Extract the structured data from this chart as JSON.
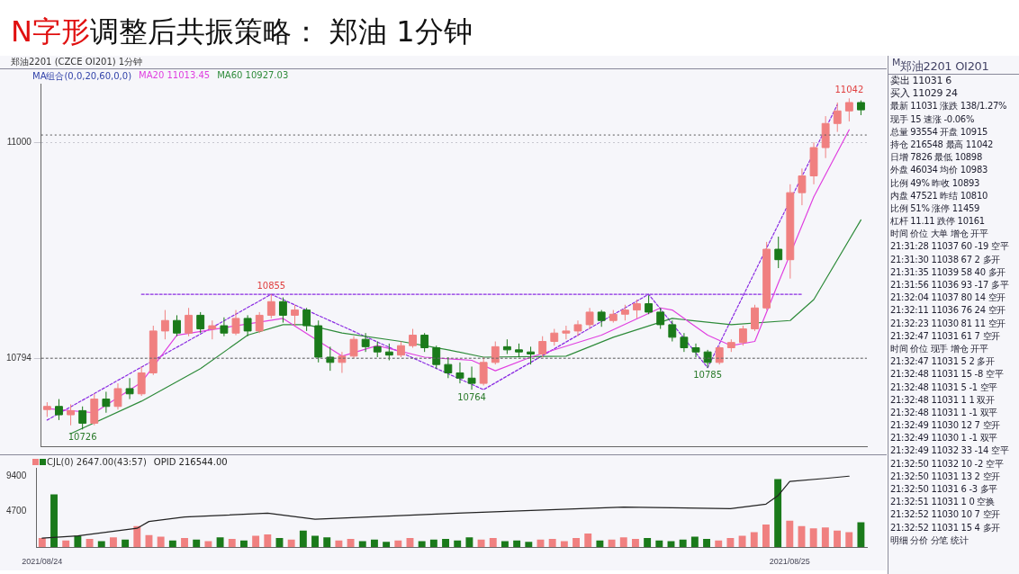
{
  "chart_data": [
    {
      "type": "candlestick",
      "title": "N字形调整后共振策略： 郑油 1分钟",
      "subtitle": "郑油2201 (CZCE OI201) 1分钟",
      "legend_title": "MA组合(0,0,20,60,0,0)",
      "legend": "top left",
      "grid": "y",
      "tick_labels": "y",
      "categories": [
        null,
        null,
        null,
        null,
        null,
        null,
        null,
        null,
        null,
        null,
        null,
        null,
        null,
        null,
        null,
        null,
        null,
        null,
        null,
        null,
        null,
        null,
        null,
        null,
        null,
        null,
        null,
        null,
        null,
        null,
        null,
        null,
        null,
        null,
        null,
        null,
        null,
        null,
        null,
        null,
        null,
        null,
        null,
        null,
        null,
        null,
        null,
        null,
        null,
        null,
        null,
        null,
        null,
        null,
        null,
        null,
        null,
        null,
        null,
        null,
        null,
        null,
        null,
        null,
        null,
        null,
        null,
        null,
        null,
        null
      ],
      "ylim": [
        10710,
        11056
      ],
      "yticks": [
        10794,
        11000
      ],
      "ohlc": [
        [
          10745,
          10752,
          10738,
          10748
        ],
        [
          10748,
          10755,
          10735,
          10740
        ],
        [
          10740,
          10750,
          10730,
          10744
        ],
        [
          10744,
          10748,
          10726,
          10732
        ],
        [
          10732,
          10760,
          10730,
          10755
        ],
        [
          10755,
          10762,
          10742,
          10748
        ],
        [
          10748,
          10770,
          10745,
          10765
        ],
        [
          10765,
          10775,
          10755,
          10760
        ],
        [
          10760,
          10786,
          10758,
          10780
        ],
        [
          10780,
          10825,
          10778,
          10820
        ],
        [
          10820,
          10840,
          10812,
          10830
        ],
        [
          10830,
          10835,
          10815,
          10818
        ],
        [
          10818,
          10842,
          10815,
          10835
        ],
        [
          10835,
          10838,
          10818,
          10822
        ],
        [
          10822,
          10830,
          10812,
          10825
        ],
        [
          10825,
          10833,
          10815,
          10818
        ],
        [
          10818,
          10840,
          10816,
          10832
        ],
        [
          10832,
          10835,
          10815,
          10820
        ],
        [
          10820,
          10838,
          10818,
          10835
        ],
        [
          10835,
          10855,
          10832,
          10848
        ],
        [
          10848,
          10852,
          10828,
          10835
        ],
        [
          10835,
          10845,
          10825,
          10840
        ],
        [
          10840,
          10842,
          10820,
          10825
        ],
        [
          10825,
          10830,
          10790,
          10795
        ],
        [
          10795,
          10805,
          10782,
          10790
        ],
        [
          10790,
          10800,
          10780,
          10796
        ],
        [
          10796,
          10815,
          10794,
          10812
        ],
        [
          10812,
          10818,
          10800,
          10805
        ],
        [
          10805,
          10810,
          10795,
          10800
        ],
        [
          10800,
          10808,
          10792,
          10797
        ],
        [
          10797,
          10810,
          10795,
          10806
        ],
        [
          10806,
          10822,
          10804,
          10816
        ],
        [
          10816,
          10818,
          10800,
          10804
        ],
        [
          10804,
          10806,
          10784,
          10788
        ],
        [
          10788,
          10795,
          10775,
          10780
        ],
        [
          10780,
          10790,
          10770,
          10775
        ],
        [
          10775,
          10786,
          10764,
          10770
        ],
        [
          10770,
          10795,
          10768,
          10790
        ],
        [
          10790,
          10810,
          10788,
          10805
        ],
        [
          10805,
          10812,
          10798,
          10802
        ],
        [
          10802,
          10808,
          10795,
          10800
        ],
        [
          10800,
          10805,
          10788,
          10798
        ],
        [
          10798,
          10815,
          10795,
          10810
        ],
        [
          10810,
          10822,
          10806,
          10818
        ],
        [
          10818,
          10825,
          10812,
          10820
        ],
        [
          10820,
          10830,
          10815,
          10826
        ],
        [
          10826,
          10842,
          10822,
          10838
        ],
        [
          10838,
          10840,
          10824,
          10830
        ],
        [
          10830,
          10840,
          10828,
          10836
        ],
        [
          10836,
          10845,
          10830,
          10840
        ],
        [
          10840,
          10850,
          10832,
          10846
        ],
        [
          10846,
          10854,
          10836,
          10838
        ],
        [
          10838,
          10842,
          10822,
          10826
        ],
        [
          10826,
          10830,
          10810,
          10814
        ],
        [
          10814,
          10818,
          10800,
          10804
        ],
        [
          10804,
          10808,
          10795,
          10800
        ],
        [
          10800,
          10802,
          10785,
          10790
        ],
        [
          10790,
          10806,
          10788,
          10804
        ],
        [
          10804,
          10812,
          10800,
          10809
        ],
        [
          10809,
          10825,
          10806,
          10822
        ],
        [
          10822,
          10845,
          10820,
          10842
        ],
        [
          10842,
          10905,
          10840,
          10898
        ],
        [
          10898,
          10910,
          10880,
          10888
        ],
        [
          10888,
          10960,
          10870,
          10952
        ],
        [
          10952,
          10975,
          10940,
          10968
        ],
        [
          10968,
          11000,
          10960,
          10995
        ],
        [
          10995,
          11025,
          10985,
          11018
        ],
        [
          11018,
          11038,
          11010,
          11030
        ],
        [
          11030,
          11042,
          11020,
          11038
        ],
        [
          11038,
          11040,
          11026,
          11031
        ]
      ],
      "colors": [
        "#f08080",
        "#1a7a1a",
        "#f08080",
        "#1a7a1a",
        "#f08080",
        "#1a7a1a",
        "#f08080",
        "#1a7a1a",
        "#f08080",
        "#f08080",
        "#f08080",
        "#1a7a1a",
        "#f08080",
        "#1a7a1a",
        "#f08080",
        "#1a7a1a",
        "#f08080",
        "#1a7a1a",
        "#f08080",
        "#f08080",
        "#1a7a1a",
        "#f08080",
        "#1a7a1a",
        "#1a7a1a",
        "#1a7a1a",
        "#f08080",
        "#f08080",
        "#1a7a1a",
        "#1a7a1a",
        "#1a7a1a",
        "#f08080",
        "#f08080",
        "#1a7a1a",
        "#1a7a1a",
        "#1a7a1a",
        "#1a7a1a",
        "#1a7a1a",
        "#f08080",
        "#f08080",
        "#1a7a1a",
        "#1a7a1a",
        "#1a7a1a",
        "#f08080",
        "#f08080",
        "#f08080",
        "#f08080",
        "#f08080",
        "#1a7a1a",
        "#f08080",
        "#f08080",
        "#f08080",
        "#1a7a1a",
        "#1a7a1a",
        "#1a7a1a",
        "#1a7a1a",
        "#1a7a1a",
        "#1a7a1a",
        "#f08080",
        "#f08080",
        "#f08080",
        "#f08080",
        "#f08080",
        "#1a7a1a",
        "#f08080",
        "#f08080",
        "#f08080",
        "#f08080",
        "#f08080",
        "#f08080",
        "#1a7a1a"
      ],
      "series": [
        {
          "name": "MA20 11013.45",
          "type": "line",
          "color": "#e040e0",
          "values": [
            10746,
            null,
            null,
            null,
            10742,
            null,
            null,
            null,
            10771,
            null,
            null,
            10816,
            null,
            null,
            null,
            null,
            null,
            null,
            null,
            null,
            10832,
            null,
            null,
            null,
            null,
            10796,
            null,
            null,
            10806,
            null,
            null,
            null,
            10795,
            null,
            null,
            null,
            10792,
            null,
            10782,
            null,
            null,
            10795,
            null,
            null,
            null,
            null,
            null,
            10816,
            null,
            null,
            null,
            null,
            10842,
            10840,
            null,
            null,
            10816,
            null,
            10806,
            null,
            10810,
            null,
            10866,
            null,
            null,
            10948,
            null,
            null,
            11012,
            null
          ]
        },
        {
          "name": "MA60 10927.03",
          "type": "line",
          "color": "#2e8b3a",
          "values": [
            null,
            null,
            10722,
            null,
            null,
            null,
            null,
            null,
            10753,
            null,
            null,
            null,
            null,
            10784,
            null,
            null,
            null,
            10816,
            null,
            null,
            10826,
            null,
            10826,
            null,
            null,
            10818,
            null,
            null,
            null,
            null,
            10810,
            null,
            null,
            null,
            10802,
            null,
            null,
            10795,
            null,
            null,
            null,
            null,
            null,
            null,
            10796,
            null,
            null,
            null,
            10814,
            null,
            null,
            null,
            null,
            10832,
            null,
            null,
            null,
            null,
            10826,
            null,
            null,
            null,
            null,
            10830,
            null,
            10850,
            null,
            null,
            null,
            10926
          ]
        },
        {
          "type": "line",
          "color": "#8a2be2",
          "line_style": "dashed",
          "values": [
            10735,
            null,
            null,
            null,
            null,
            null,
            null,
            null,
            null,
            null,
            null,
            null,
            null,
            null,
            null,
            null,
            null,
            null,
            null,
            10855,
            null,
            null,
            null,
            null,
            null,
            null,
            null,
            null,
            null,
            null,
            null,
            null,
            null,
            null,
            null,
            null,
            null,
            10764,
            null,
            null,
            null,
            null,
            null,
            null,
            null,
            null,
            null,
            null,
            null,
            null,
            null,
            10855,
            null,
            null,
            null,
            null,
            10785,
            null,
            null,
            null,
            null,
            null,
            null,
            null,
            null,
            null,
            null,
            11036,
            null,
            null
          ]
        },
        {
          "type": "line",
          "color": "#8a2be2",
          "line_style": "dashed",
          "values": [
            null,
            null,
            null,
            null,
            null,
            null,
            null,
            null,
            10855,
            null,
            null,
            null,
            null,
            null,
            null,
            null,
            null,
            null,
            null,
            null,
            null,
            null,
            null,
            null,
            null,
            null,
            null,
            null,
            null,
            null,
            null,
            null,
            null,
            null,
            null,
            null,
            null,
            null,
            null,
            null,
            null,
            null,
            null,
            null,
            null,
            null,
            null,
            null,
            null,
            null,
            null,
            null,
            null,
            null,
            null,
            null,
            null,
            null,
            null,
            null,
            null,
            null,
            null,
            null,
            10855,
            null,
            null,
            null,
            null,
            null
          ]
        }
      ],
      "ref_lines": [
        {
          "axis": "y",
          "value": 10794,
          "color": "#666666",
          "line_style": "dashed"
        },
        {
          "axis": "y",
          "value": 11007,
          "color": "#555555",
          "line_style": "dotted"
        }
      ],
      "annotations": [
        {
          "text": "11042",
          "y": 11042
        },
        {
          "text": "10855",
          "y": 10855
        },
        {
          "text": "10764",
          "y": 10764
        },
        {
          "text": "10785",
          "y": 10785
        },
        {
          "text": "10726",
          "y": 10726
        }
      ]
    },
    {
      "type": "bar",
      "legend": "top left",
      "tick_labels": "xy",
      "categories": [
        "2021/08/24",
        null,
        null,
        null,
        null,
        null,
        null,
        null,
        null,
        null,
        null,
        null,
        null,
        null,
        null,
        null,
        null,
        null,
        null,
        null,
        null,
        null,
        null,
        null,
        null,
        null,
        null,
        null,
        null,
        null,
        null,
        null,
        null,
        null,
        null,
        null,
        null,
        null,
        null,
        null,
        null,
        null,
        null,
        null,
        null,
        null,
        null,
        null,
        null,
        null,
        null,
        null,
        null,
        null,
        null,
        null,
        null,
        null,
        null,
        null,
        null,
        null,
        null,
        "2021/08/25",
        null,
        null,
        null,
        null,
        null,
        null
      ],
      "ylim": [
        0,
        10500
      ],
      "yticks": [
        4700,
        9400
      ],
      "series": [
        {
          "name": "CJL(0) 2647.00(43:57)",
          "type": "bar",
          "colors": [
            "#f08080",
            "#1a7a1a",
            "#f08080",
            "#1a7a1a",
            "#f08080",
            "#1a7a1a",
            "#f08080",
            "#1a7a1a",
            "#f08080",
            "#f08080",
            "#f08080",
            "#1a7a1a",
            "#f08080",
            "#1a7a1a",
            "#f08080",
            "#1a7a1a",
            "#f08080",
            "#1a7a1a",
            "#f08080",
            "#f08080",
            "#1a7a1a",
            "#f08080",
            "#1a7a1a",
            "#1a7a1a",
            "#1a7a1a",
            "#f08080",
            "#f08080",
            "#1a7a1a",
            "#1a7a1a",
            "#1a7a1a",
            "#f08080",
            "#f08080",
            "#1a7a1a",
            "#1a7a1a",
            "#1a7a1a",
            "#1a7a1a",
            "#1a7a1a",
            "#f08080",
            "#f08080",
            "#1a7a1a",
            "#1a7a1a",
            "#1a7a1a",
            "#f08080",
            "#f08080",
            "#f08080",
            "#f08080",
            "#f08080",
            "#1a7a1a",
            "#f08080",
            "#f08080",
            "#f08080",
            "#1a7a1a",
            "#1a7a1a",
            "#1a7a1a",
            "#1a7a1a",
            "#1a7a1a",
            "#1a7a1a",
            "#f08080",
            "#f08080",
            "#f08080",
            "#f08080",
            "#f08080",
            "#1a7a1a",
            "#f08080",
            "#f08080",
            "#f08080",
            "#f08080",
            "#f08080",
            "#f08080",
            "#1a7a1a"
          ],
          "values": [
            1200,
            7000,
            900,
            1500,
            1100,
            800,
            1300,
            1000,
            2800,
            1600,
            1400,
            900,
            1200,
            1000,
            800,
            1300,
            1100,
            900,
            1500,
            1700,
            1200,
            1000,
            2200,
            1500,
            1300,
            900,
            1100,
            800,
            1000,
            700,
            900,
            1200,
            800,
            1000,
            1100,
            900,
            1300,
            1000,
            1200,
            800,
            900,
            700,
            1000,
            1100,
            800,
            1200,
            1800,
            900,
            1000,
            1300,
            1100,
            1200,
            900,
            800,
            1000,
            1400,
            1100,
            900,
            1200,
            1500,
            2000,
            3000,
            9000,
            3500,
            2800,
            2500,
            2600,
            2200,
            2000,
            3300
          ]
        },
        {
          "name": "OPID 216544.00",
          "type": "line",
          "color": "#222222",
          "values": [
            1200,
            null,
            null,
            1500,
            null,
            null,
            null,
            null,
            2500,
            3400,
            null,
            null,
            4000,
            null,
            null,
            null,
            null,
            null,
            null,
            4500,
            null,
            null,
            null,
            3700,
            null,
            null,
            null,
            null,
            null,
            null,
            null,
            null,
            null,
            null,
            null,
            4500,
            null,
            null,
            null,
            null,
            null,
            null,
            null,
            null,
            null,
            null,
            null,
            null,
            null,
            5300,
            null,
            null,
            null,
            null,
            null,
            null,
            null,
            null,
            5100,
            null,
            null,
            5700,
            6800,
            8700,
            null,
            null,
            9100,
            null,
            9400,
            null
          ]
        }
      ]
    },
    {
      "type": "other",
      "title": "$^{M}$郑油2201 OI201",
      "annotations": [
        "卖出 11031 6",
        "买入 11029 24",
        "最新 11031 涨跌 138/1.27%",
        "现手 15 速涨 -0.06%",
        "总量 93554 开盘 10915",
        "持仓 216548 最高 11042",
        "日增 7826 最低 10898",
        "外盘 46034 均价 10983",
        "比例 49% 昨收 10893",
        "内盘 47521 昨结 10810",
        "比例 51% 涨停 11459",
        "杠杆 11.11 跌停 10161",
        "时间 价位 大单 增仓 开平",
        "21:31:28 11037 60 -19 空平",
        "21:31:30 11038 67 2 多开",
        "21:31:35 11039 58 40 多开",
        "21:31:56 11036 93 -17 多平",
        "21:32:04 11037 80 14 空开",
        "21:32:11 11036 76 24 空开",
        "21:32:23 11030 81 11 空开",
        "21:32:47 11031 61 7 空开",
        "时间 价位 现手 增仓 开平",
        "21:32:47 11031 5 2 多开",
        "21:32:48 11031 15 -8 空平",
        "21:32:48 11031 5 -1 空平",
        "21:32:48 11031 1 1 双开",
        "21:32:48 11031 1 -1 双平",
        "21:32:49 11030 12 7 空开",
        "21:32:49 11030 1 -1 双平",
        "21:32:49 11032 33 -14 空平",
        "21:32:50 11032 10 -2 空平",
        "21:32:50 11031 13 2 空开",
        "21:32:50 11031 6 -3 多平",
        "21:32:51 11031 1 0 空换",
        "21:32:52 11030 10 7 空开",
        "21:32:52 11031 15 4 多开",
        "明细 分价 分笔 统计"
      ]
    }
  ]
}
